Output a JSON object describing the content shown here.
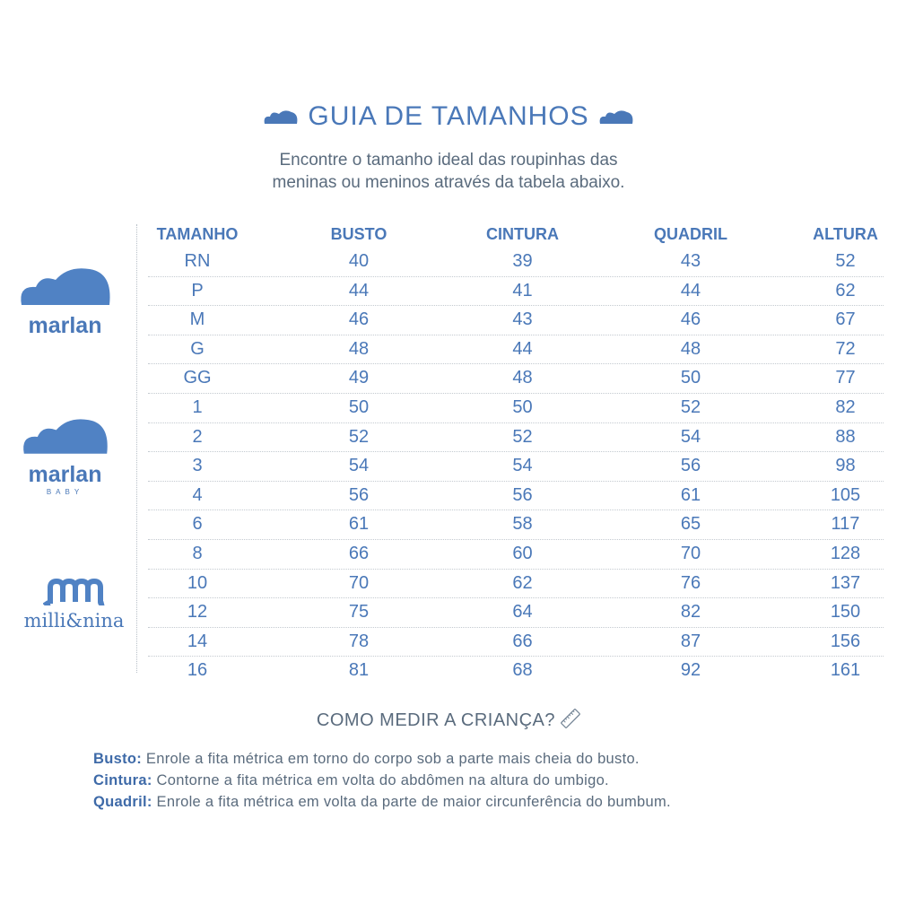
{
  "title": "GUIA DE TAMANHOS",
  "subtitle": [
    "Encontre o tamanho ideal das roupinhas das",
    "meninas ou meninos através da tabela abaixo."
  ],
  "brand_color": "#4a78b8",
  "logos": {
    "marlan": "marlan",
    "marlan_baby": {
      "name": "marlan",
      "sub": "BABY"
    },
    "milli_nina": "milli&nina"
  },
  "table": {
    "headers": [
      "TAMANHO",
      "BUSTO",
      "CINTURA",
      "QUADRIL",
      "ALTURA"
    ],
    "rows": [
      [
        "RN",
        "40",
        "39",
        "43",
        "52"
      ],
      [
        "P",
        "44",
        "41",
        "44",
        "62"
      ],
      [
        "M",
        "46",
        "43",
        "46",
        "67"
      ],
      [
        "G",
        "48",
        "44",
        "48",
        "72"
      ],
      [
        "GG",
        "49",
        "48",
        "50",
        "77"
      ],
      [
        "1",
        "50",
        "50",
        "52",
        "82"
      ],
      [
        "2",
        "52",
        "52",
        "54",
        "88"
      ],
      [
        "3",
        "54",
        "54",
        "56",
        "98"
      ],
      [
        "4",
        "56",
        "56",
        "61",
        "105"
      ],
      [
        "6",
        "61",
        "58",
        "65",
        "117"
      ],
      [
        "8",
        "66",
        "60",
        "70",
        "128"
      ],
      [
        "10",
        "70",
        "62",
        "76",
        "137"
      ],
      [
        "12",
        "75",
        "64",
        "82",
        "150"
      ],
      [
        "14",
        "78",
        "66",
        "87",
        "156"
      ],
      [
        "16",
        "81",
        "68",
        "92",
        "161"
      ]
    ]
  },
  "howto": "COMO MEDIR A CRIANÇA?",
  "notes": [
    {
      "label": "Busto:",
      "text": " Enrole a fita métrica em torno do corpo sob a parte mais cheia do busto."
    },
    {
      "label": "Cintura:",
      "text": " Contorne a fita métrica em volta do abdômen na altura do umbigo."
    },
    {
      "label": "Quadril:",
      "text": " Enrole a fita métrica em volta da parte de maior circunferência do bumbum."
    }
  ]
}
